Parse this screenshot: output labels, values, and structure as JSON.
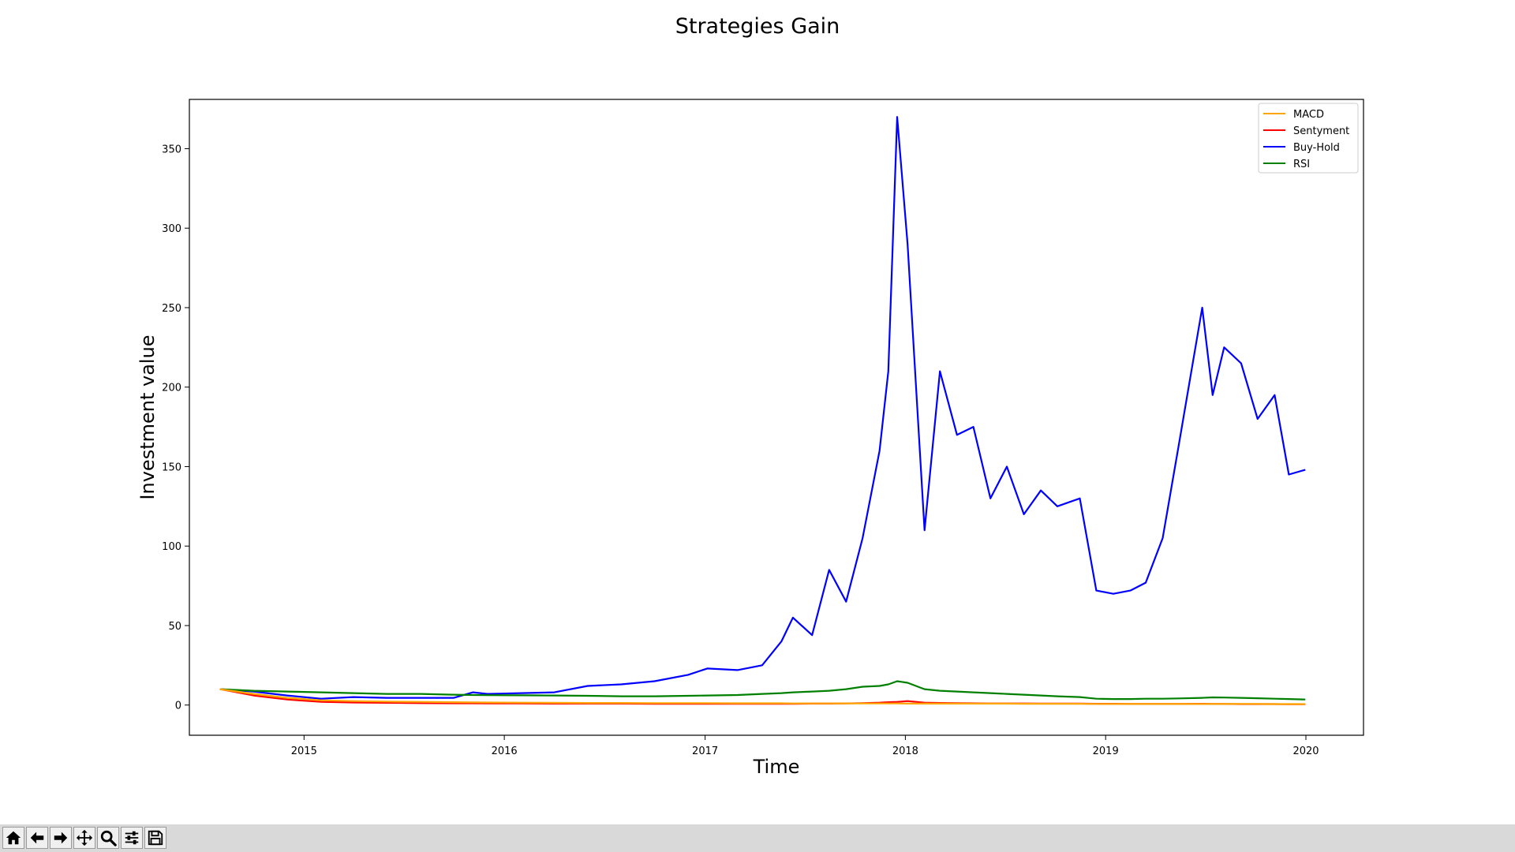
{
  "window": {
    "title": "Strategies Gain"
  },
  "chart_data": {
    "type": "line",
    "title": "Strategies Gain",
    "xlabel": "Time",
    "ylabel": "Investment value",
    "xlim": [
      "2014-06-06",
      "2020-04-15"
    ],
    "ylim": [
      -19,
      381
    ],
    "x_ticks": [
      "2015",
      "2016",
      "2017",
      "2018",
      "2019",
      "2020"
    ],
    "y_ticks": [
      0,
      50,
      100,
      150,
      200,
      250,
      300,
      350
    ],
    "grid": false,
    "legend_position": "upper right",
    "x": [
      "2014-08-01",
      "2014-10-01",
      "2014-12-01",
      "2015-02-01",
      "2015-04-01",
      "2015-06-01",
      "2015-08-01",
      "2015-10-01",
      "2015-11-05",
      "2015-12-01",
      "2016-02-01",
      "2016-04-01",
      "2016-06-01",
      "2016-08-01",
      "2016-10-01",
      "2016-12-01",
      "2017-01-05",
      "2017-03-01",
      "2017-04-15",
      "2017-05-20",
      "2017-06-10",
      "2017-07-15",
      "2017-08-15",
      "2017-09-15",
      "2017-10-15",
      "2017-11-15",
      "2017-12-01",
      "2017-12-17",
      "2018-01-05",
      "2018-02-05",
      "2018-03-05",
      "2018-04-05",
      "2018-05-05",
      "2018-06-05",
      "2018-07-05",
      "2018-08-05",
      "2018-09-05",
      "2018-10-05",
      "2018-11-15",
      "2018-12-15",
      "2019-01-15",
      "2019-02-15",
      "2019-03-15",
      "2019-04-15",
      "2019-05-15",
      "2019-06-26",
      "2019-07-15",
      "2019-08-05",
      "2019-09-05",
      "2019-10-05",
      "2019-11-05",
      "2019-12-01",
      "2019-12-31"
    ],
    "series": [
      {
        "name": "MACD",
        "color": "#ffa500",
        "values": [
          10,
          7,
          4.5,
          3,
          2.5,
          2.2,
          2,
          1.8,
          1.7,
          1.6,
          1.5,
          1.4,
          1.3,
          1.3,
          1.2,
          1.2,
          1.2,
          1.1,
          1.1,
          1.1,
          1,
          1,
          1,
          1,
          1,
          1,
          1,
          1,
          0.9,
          0.9,
          0.9,
          0.9,
          0.9,
          0.9,
          0.9,
          0.8,
          0.8,
          0.8,
          0.8,
          0.7,
          0.7,
          0.7,
          0.7,
          0.7,
          0.7,
          0.7,
          0.7,
          0.7,
          0.7,
          0.7,
          0.6,
          0.6,
          0.6
        ]
      },
      {
        "name": "Sentyment",
        "color": "#ff0000",
        "values": [
          10,
          6,
          3.5,
          2,
          1.6,
          1.4,
          1.2,
          1.1,
          1.1,
          1,
          1,
          0.9,
          0.9,
          0.9,
          0.8,
          0.8,
          0.8,
          0.8,
          0.8,
          0.8,
          0.8,
          0.9,
          0.9,
          1,
          1.2,
          1.5,
          1.8,
          2,
          2.5,
          1.5,
          1.3,
          1.2,
          1.1,
          1,
          1,
          1,
          0.9,
          0.9,
          0.9,
          0.8,
          0.8,
          0.7,
          0.7,
          0.7,
          0.7,
          0.8,
          0.7,
          0.7,
          0.6,
          0.6,
          0.6,
          0.5,
          0.5
        ]
      },
      {
        "name": "Buy-Hold",
        "color": "#0000ff",
        "values": [
          10,
          8.5,
          6,
          4,
          5,
          4.5,
          4.5,
          4.5,
          8,
          7,
          7.5,
          8,
          12,
          13,
          15,
          19,
          23,
          22,
          25,
          40,
          55,
          44,
          85,
          65,
          105,
          160,
          210,
          370,
          290,
          110,
          210,
          170,
          175,
          130,
          150,
          120,
          135,
          125,
          130,
          72,
          70,
          72,
          77,
          105,
          165,
          250,
          195,
          225,
          215,
          180,
          195,
          145,
          148
        ]
      },
      {
        "name": "RSI",
        "color": "#008000",
        "values": [
          10,
          9,
          8.5,
          8,
          7.5,
          7,
          7,
          6.5,
          6.3,
          6.2,
          6.1,
          6,
          5.8,
          5.5,
          5.5,
          5.8,
          6,
          6.3,
          7,
          7.5,
          8,
          8.5,
          9,
          10,
          11.5,
          12,
          13,
          15,
          14,
          10,
          9,
          8.5,
          8,
          7.5,
          7,
          6.5,
          6,
          5.5,
          5,
          4,
          3.8,
          3.8,
          4,
          4,
          4.2,
          4.5,
          4.8,
          4.7,
          4.5,
          4.3,
          4,
          3.8,
          3.5
        ]
      }
    ]
  },
  "toolbar": {
    "icons": [
      "home-icon",
      "back-arrow-icon",
      "forward-arrow-icon",
      "pan-icon",
      "zoom-icon",
      "configure-subplots-icon",
      "save-icon"
    ]
  }
}
